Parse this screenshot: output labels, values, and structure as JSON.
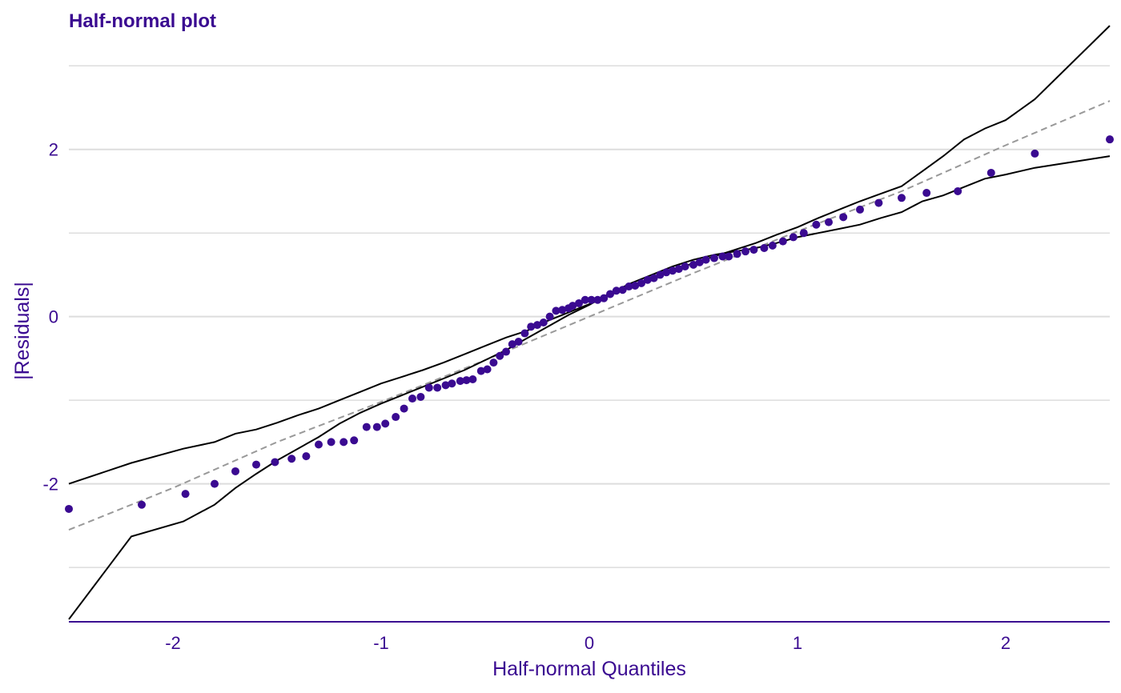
{
  "chart_data": {
    "type": "scatter",
    "title": "Half-normal plot",
    "xlabel": "Half-normal Quantiles",
    "ylabel": "|Residuals|",
    "xlim": [
      -2.5,
      2.5
    ],
    "ylim": [
      -3.65,
      3.5
    ],
    "x_ticks": [
      -2,
      -1,
      0,
      1,
      2
    ],
    "x_tick_labels": [
      "-2",
      "-1",
      "0",
      "1",
      "2"
    ],
    "y_ticks": [
      -2,
      0,
      2
    ],
    "y_tick_labels": [
      "-2",
      "0",
      "2"
    ],
    "y_minor_gridlines": [
      -3,
      -1,
      1,
      3
    ],
    "grid": "horizontal",
    "colors": {
      "points": "#3a0a91",
      "text": "#3a0a91",
      "envelope": "#000000",
      "reference_line": "#999999",
      "grid": "#dddddd"
    },
    "points": {
      "x": [
        -2.5,
        -2.15,
        -1.94,
        -1.8,
        -1.7,
        -1.6,
        -1.51,
        -1.43,
        -1.36,
        -1.3,
        -1.24,
        -1.18,
        -1.13,
        -1.07,
        -1.02,
        -0.98,
        -0.93,
        -0.89,
        -0.85,
        -0.81,
        -0.77,
        -0.73,
        -0.69,
        -0.66,
        -0.62,
        -0.59,
        -0.56,
        -0.52,
        -0.49,
        -0.46,
        -0.43,
        -0.4,
        -0.37,
        -0.34,
        -0.31,
        -0.28,
        -0.25,
        -0.22,
        -0.19,
        -0.16,
        -0.13,
        -0.1,
        -0.08,
        -0.05,
        -0.02,
        0.01,
        0.04,
        0.07,
        0.1,
        0.13,
        0.16,
        0.19,
        0.22,
        0.25,
        0.28,
        0.31,
        0.34,
        0.37,
        0.4,
        0.43,
        0.46,
        0.5,
        0.53,
        0.56,
        0.6,
        0.64,
        0.67,
        0.71,
        0.75,
        0.79,
        0.84,
        0.88,
        0.93,
        0.98,
        1.03,
        1.09,
        1.15,
        1.22,
        1.3,
        1.39,
        1.5,
        1.62,
        1.77,
        1.93,
        2.14,
        2.5
      ],
      "y": [
        -2.3,
        -2.25,
        -2.12,
        -2.0,
        -1.85,
        -1.77,
        -1.74,
        -1.7,
        -1.67,
        -1.53,
        -1.5,
        -1.5,
        -1.48,
        -1.32,
        -1.32,
        -1.28,
        -1.2,
        -1.1,
        -0.98,
        -0.96,
        -0.85,
        -0.85,
        -0.82,
        -0.8,
        -0.77,
        -0.76,
        -0.75,
        -0.65,
        -0.63,
        -0.55,
        -0.47,
        -0.42,
        -0.33,
        -0.3,
        -0.2,
        -0.12,
        -0.1,
        -0.07,
        0.0,
        0.07,
        0.08,
        0.1,
        0.13,
        0.16,
        0.2,
        0.2,
        0.2,
        0.22,
        0.27,
        0.31,
        0.32,
        0.36,
        0.37,
        0.4,
        0.44,
        0.46,
        0.5,
        0.53,
        0.55,
        0.57,
        0.6,
        0.62,
        0.65,
        0.68,
        0.7,
        0.72,
        0.72,
        0.75,
        0.78,
        0.8,
        0.82,
        0.85,
        0.9,
        0.95,
        1.0,
        1.1,
        1.13,
        1.19,
        1.28,
        1.36,
        1.42,
        1.48,
        1.5,
        1.72,
        1.95,
        2.12
      ]
    },
    "upper_envelope": {
      "x": [
        -2.5,
        -2.2,
        -1.95,
        -1.8,
        -1.7,
        -1.6,
        -1.5,
        -1.4,
        -1.3,
        -1.2,
        -1.1,
        -1.0,
        -0.9,
        -0.8,
        -0.7,
        -0.6,
        -0.5,
        -0.4,
        -0.3,
        -0.2,
        -0.1,
        0.0,
        0.1,
        0.2,
        0.3,
        0.4,
        0.5,
        0.6,
        0.7,
        0.8,
        0.9,
        1.0,
        1.1,
        1.2,
        1.3,
        1.4,
        1.5,
        1.6,
        1.7,
        1.8,
        1.9,
        2.0,
        2.14,
        2.5
      ],
      "y": [
        -2.0,
        -1.75,
        -1.58,
        -1.5,
        -1.4,
        -1.35,
        -1.27,
        -1.18,
        -1.1,
        -1.0,
        -0.9,
        -0.8,
        -0.72,
        -0.64,
        -0.55,
        -0.45,
        -0.35,
        -0.25,
        -0.17,
        -0.05,
        0.05,
        0.15,
        0.26,
        0.35,
        0.46,
        0.55,
        0.64,
        0.72,
        0.8,
        0.88,
        0.98,
        1.07,
        1.18,
        1.28,
        1.38,
        1.47,
        1.56,
        1.74,
        1.92,
        2.12,
        2.25,
        2.35,
        2.6,
        3.48
      ]
    },
    "lower_envelope": {
      "x": [
        -2.5,
        -2.2,
        -1.95,
        -1.8,
        -1.7,
        -1.6,
        -1.5,
        -1.4,
        -1.3,
        -1.2,
        -1.1,
        -1.0,
        -0.9,
        -0.8,
        -0.7,
        -0.6,
        -0.5,
        -0.4,
        -0.3,
        -0.2,
        -0.1,
        0.0,
        0.1,
        0.2,
        0.3,
        0.4,
        0.5,
        0.6,
        0.7,
        0.8,
        0.9,
        1.0,
        1.1,
        1.2,
        1.3,
        1.4,
        1.5,
        1.6,
        1.7,
        1.8,
        1.9,
        2.0,
        2.14,
        2.5
      ],
      "y": [
        -3.62,
        -2.63,
        -2.45,
        -2.25,
        -2.05,
        -1.88,
        -1.72,
        -1.58,
        -1.44,
        -1.28,
        -1.15,
        -1.04,
        -0.94,
        -0.84,
        -0.74,
        -0.64,
        -0.52,
        -0.4,
        -0.26,
        -0.12,
        0.02,
        0.14,
        0.28,
        0.4,
        0.5,
        0.6,
        0.68,
        0.74,
        0.78,
        0.82,
        0.88,
        0.95,
        1.0,
        1.05,
        1.1,
        1.18,
        1.25,
        1.38,
        1.45,
        1.55,
        1.65,
        1.7,
        1.78,
        1.92
      ]
    },
    "reference_line": {
      "x": [
        -2.5,
        -2.0,
        -1.5,
        -1.0,
        -0.5,
        0.0,
        0.5,
        1.0,
        1.5,
        2.0,
        2.5
      ],
      "y": [
        -2.55,
        -2.05,
        -1.5,
        -1.02,
        -0.52,
        0.0,
        0.52,
        1.02,
        1.5,
        2.05,
        2.58
      ]
    }
  }
}
